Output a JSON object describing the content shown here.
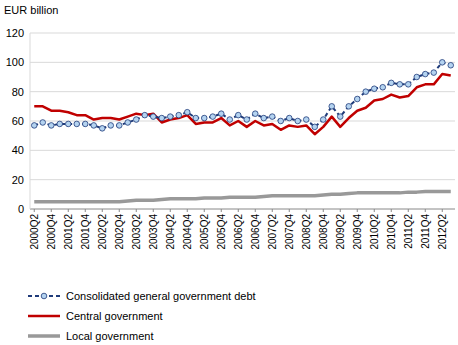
{
  "chart_data": {
    "type": "line",
    "y_label": "EUR billion",
    "categories": [
      "2000Q2",
      null,
      "2000Q4",
      null,
      "2001Q2",
      null,
      "2001Q4",
      null,
      "2002Q2",
      null,
      "2002Q4",
      null,
      "2003Q2",
      null,
      "2003Q4",
      null,
      "2004Q2",
      null,
      "2004Q4",
      null,
      "2005Q2",
      null,
      "2005Q4",
      null,
      "2006Q2",
      null,
      "2006Q4",
      null,
      "2007Q2",
      null,
      "2007Q4",
      null,
      "2008Q2",
      null,
      "2008Q4",
      null,
      "2009Q2",
      null,
      "2009Q4",
      null,
      "2010Q2",
      null,
      "2010Q4",
      null,
      "2011Q2",
      null,
      "2011Q4",
      null,
      "2012Q2",
      null
    ],
    "series": [
      {
        "name": "Consolidated general government debt",
        "color": "#1f3b7a",
        "marker": "circle",
        "line_style": "dashed",
        "values": [
          57,
          59,
          57,
          58,
          58,
          58,
          58,
          57,
          55,
          57,
          57,
          59,
          61,
          64,
          63,
          62,
          63,
          64,
          66,
          62,
          62,
          63,
          65,
          61,
          64,
          61,
          65,
          62,
          63,
          60,
          62,
          60,
          61,
          56,
          61,
          70,
          63,
          70,
          75,
          80,
          82,
          83,
          86,
          85,
          85,
          90,
          92,
          93,
          100,
          98
        ]
      },
      {
        "name": "Central government",
        "color": "#c00000",
        "line_style": "solid",
        "values": [
          70,
          70,
          67,
          67,
          66,
          64,
          64,
          61,
          62,
          62,
          61,
          63,
          65,
          64,
          65,
          59,
          61,
          62,
          64,
          58,
          59,
          59,
          62,
          57,
          60,
          56,
          60,
          57,
          58,
          54,
          57,
          56,
          57,
          51,
          56,
          63,
          56,
          62,
          67,
          69,
          74,
          75,
          78,
          76,
          77,
          83,
          85,
          85,
          92,
          91
        ]
      },
      {
        "name": "Local government",
        "color": "#999999",
        "line_style": "solid",
        "values": [
          5,
          5,
          5,
          5,
          5,
          5,
          5,
          5,
          5,
          5,
          5,
          5.5,
          6,
          6,
          6,
          6.5,
          7,
          7,
          7,
          7,
          7.5,
          7.5,
          7.5,
          8,
          8,
          8,
          8,
          8.5,
          9,
          9,
          9,
          9,
          9,
          9,
          9.5,
          10,
          10,
          10.5,
          11,
          11,
          11,
          11,
          11,
          11,
          11.5,
          11.5,
          12,
          12,
          12,
          12
        ]
      }
    ],
    "ylim": [
      0,
      120
    ],
    "yticks": [
      0,
      20,
      40,
      60,
      80,
      100,
      120
    ],
    "grid": true,
    "legend": "bottom"
  }
}
